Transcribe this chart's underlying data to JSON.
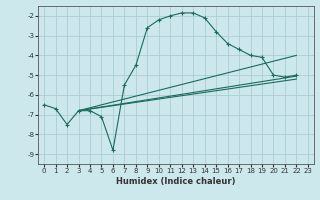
{
  "xlabel": "Humidex (Indice chaleur)",
  "background_color": "#cce8ec",
  "grid_color": "#aacdd4",
  "line_color": "#1a6b5a",
  "xlim": [
    -0.5,
    23.5
  ],
  "ylim": [
    -9.5,
    -1.5
  ],
  "yticks": [
    -9,
    -8,
    -7,
    -6,
    -5,
    -4,
    -3,
    -2
  ],
  "xticks": [
    0,
    1,
    2,
    3,
    4,
    5,
    6,
    7,
    8,
    9,
    10,
    11,
    12,
    13,
    14,
    15,
    16,
    17,
    18,
    19,
    20,
    21,
    22,
    23
  ],
  "main_curve": {
    "x": [
      0,
      1,
      2,
      3,
      4,
      5,
      6,
      7,
      8,
      9,
      10,
      11,
      12,
      13,
      14,
      15,
      16,
      17,
      18,
      19,
      20,
      21,
      22
    ],
    "y": [
      -6.5,
      -6.7,
      -7.5,
      -6.8,
      -6.8,
      -7.1,
      -8.8,
      -5.5,
      -4.5,
      -2.6,
      -2.2,
      -2.0,
      -1.85,
      -1.85,
      -2.1,
      -2.8,
      -3.4,
      -3.7,
      -4.0,
      -4.1,
      -5.0,
      -5.1,
      -5.0
    ]
  },
  "trend_lines": [
    {
      "x": [
        3,
        22
      ],
      "y": [
        -6.8,
        -5.05
      ]
    },
    {
      "x": [
        3,
        22
      ],
      "y": [
        -6.8,
        -4.0
      ]
    },
    {
      "x": [
        3,
        22
      ],
      "y": [
        -6.8,
        -5.2
      ]
    }
  ]
}
